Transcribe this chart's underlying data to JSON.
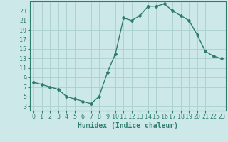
{
  "x": [
    0,
    1,
    2,
    3,
    4,
    5,
    6,
    7,
    8,
    9,
    10,
    11,
    12,
    13,
    14,
    15,
    16,
    17,
    18,
    19,
    20,
    21,
    22,
    23
  ],
  "y": [
    8,
    7.5,
    7,
    6.5,
    5,
    4.5,
    4,
    3.5,
    5,
    10,
    14,
    21.5,
    21,
    22,
    24,
    24,
    24.5,
    23,
    22,
    21,
    18,
    14.5,
    13.5,
    13
  ],
  "line_color": "#2e7d6e",
  "marker": "D",
  "markersize": 2.0,
  "linewidth": 1.0,
  "xlabel": "Humidex (Indice chaleur)",
  "bg_color": "#cde8e8",
  "grid_color": "#aacfcf",
  "xlim": [
    -0.5,
    23.5
  ],
  "ylim": [
    2,
    25
  ],
  "yticks": [
    3,
    5,
    7,
    9,
    11,
    13,
    15,
    17,
    19,
    21,
    23
  ],
  "xticks": [
    0,
    1,
    2,
    3,
    4,
    5,
    6,
    7,
    8,
    9,
    10,
    11,
    12,
    13,
    14,
    15,
    16,
    17,
    18,
    19,
    20,
    21,
    22,
    23
  ],
  "xlabel_fontsize": 7,
  "tick_fontsize": 6,
  "tick_color": "#2e7d6e",
  "spine_color": "#2e7d6e"
}
